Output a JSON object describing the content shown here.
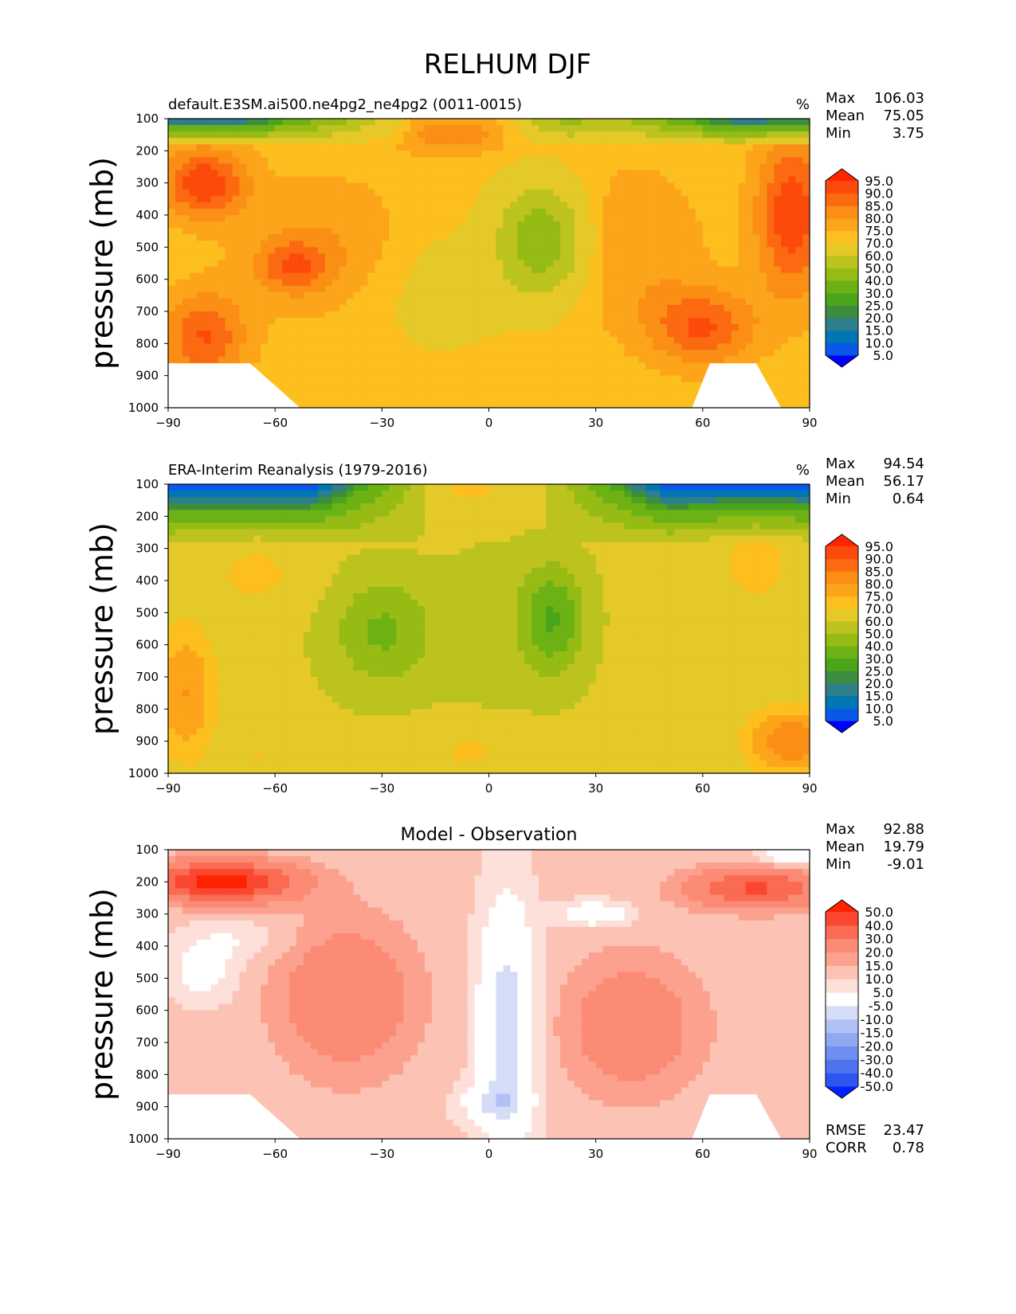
{
  "figure": {
    "title": "RELHUM DJF"
  },
  "chart_data": [
    {
      "type": "heatmap",
      "title": "default.E3SM.ai500.ne4pg2_ne4pg2 (0011-0015)",
      "units": "%",
      "ylabel": "pressure (mb)",
      "xlim": [
        -90,
        90
      ],
      "ylim": [
        1000,
        100
      ],
      "x_ticks": [
        "−90",
        "−60",
        "−30",
        "0",
        "30",
        "60",
        "90"
      ],
      "y_ticks": [
        "100",
        "200",
        "300",
        "400",
        "500",
        "600",
        "700",
        "800",
        "900",
        "1000"
      ],
      "stats": {
        "max_label": "Max",
        "max": "106.03",
        "mean_label": "Mean",
        "mean": "75.05",
        "min_label": "Min",
        "min": "3.75"
      },
      "levels": [
        "5.0",
        "10.0",
        "15.0",
        "20.0",
        "25.0",
        "30.0",
        "40.0",
        "50.0",
        "60.0",
        "70.0",
        "75.0",
        "80.0",
        "85.0",
        "90.0",
        "95.0"
      ],
      "colors": [
        "#0000ff",
        "#0a58e8",
        "#0077b3",
        "#2d7f8c",
        "#3d8c40",
        "#4aa51d",
        "#6db214",
        "#95bb14",
        "#bcc21e",
        "#e4c928",
        "#fcbf1e",
        "#fca41a",
        "#fb8e15",
        "#fb6a10",
        "#fb4a0b",
        "#fe2500"
      ],
      "field": "model"
    },
    {
      "type": "heatmap",
      "title": "ERA-Interim Reanalysis (1979-2016)",
      "units": "%",
      "ylabel": "pressure (mb)",
      "xlim": [
        -90,
        90
      ],
      "ylim": [
        1000,
        100
      ],
      "x_ticks": [
        "−90",
        "−60",
        "−30",
        "0",
        "30",
        "60",
        "90"
      ],
      "y_ticks": [
        "100",
        "200",
        "300",
        "400",
        "500",
        "600",
        "700",
        "800",
        "900",
        "1000"
      ],
      "stats": {
        "max_label": "Max",
        "max": "94.54",
        "mean_label": "Mean",
        "mean": "56.17",
        "min_label": "Min",
        "min": "0.64"
      },
      "levels": [
        "5.0",
        "10.0",
        "15.0",
        "20.0",
        "25.0",
        "30.0",
        "40.0",
        "50.0",
        "60.0",
        "70.0",
        "75.0",
        "80.0",
        "85.0",
        "90.0",
        "95.0"
      ],
      "colors": [
        "#0000ff",
        "#0a58e8",
        "#0077b3",
        "#2d7f8c",
        "#3d8c40",
        "#4aa51d",
        "#6db214",
        "#95bb14",
        "#bcc21e",
        "#e4c928",
        "#fcbf1e",
        "#fca41a",
        "#fb8e15",
        "#fb6a10",
        "#fb4a0b",
        "#fe2500"
      ],
      "field": "obs"
    },
    {
      "type": "heatmap",
      "title": "Model - Observation",
      "units": "",
      "ylabel": "pressure (mb)",
      "xlim": [
        -90,
        90
      ],
      "ylim": [
        1000,
        100
      ],
      "x_ticks": [
        "−90",
        "−60",
        "−30",
        "0",
        "30",
        "60",
        "90"
      ],
      "y_ticks": [
        "100",
        "200",
        "300",
        "400",
        "500",
        "600",
        "700",
        "800",
        "900",
        "1000"
      ],
      "stats": {
        "max_label": "Max",
        "max": "92.88",
        "mean_label": "Mean",
        "mean": "19.79",
        "min_label": "Min",
        "min": "-9.01"
      },
      "extra_stats": {
        "rmse_label": "RMSE",
        "rmse": "23.47",
        "corr_label": "CORR",
        "corr": "0.78"
      },
      "levels": [
        "-50.0",
        "-40.0",
        "-30.0",
        "-20.0",
        "-15.0",
        "-10.0",
        "-5.0",
        "5.0",
        "10.0",
        "15.0",
        "20.0",
        "30.0",
        "40.0",
        "50.0"
      ],
      "colors": [
        "#0022ff",
        "#2e55f0",
        "#4f73ee",
        "#6f8ef0",
        "#92a9f2",
        "#b1c1f5",
        "#d4dcf8",
        "#ffffff",
        "#fde0d9",
        "#fcc3b5",
        "#fca18e",
        "#fb8b74",
        "#fb6a52",
        "#fb4730",
        "#fe2200"
      ],
      "field": "diff"
    }
  ]
}
